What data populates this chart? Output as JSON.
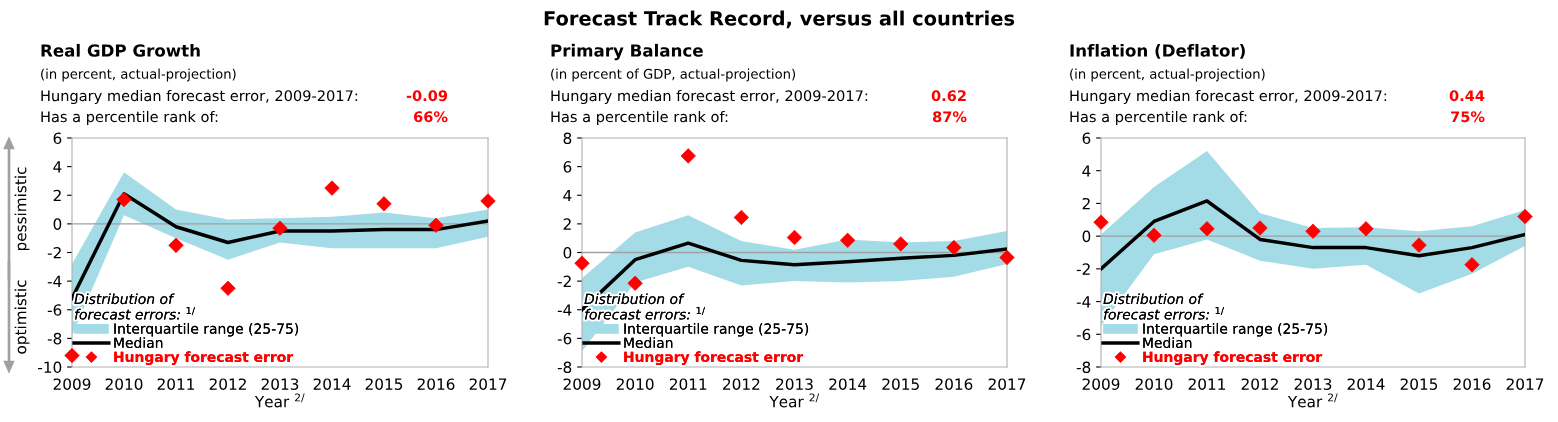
{
  "chart_data": [
    {
      "type": "other",
      "title": "Forecast Track Record, versus all countries"
    },
    {
      "type": "line",
      "title": "Real GDP Growth",
      "subtitle": "(in percent, actual-projection)",
      "xlabel": "Year $^{2/}$",
      "annotations": [
        "Hungary median forecast error, 2009-2017:",
        "-0.09",
        "Has a percentile rank of:",
        "66%",
        "pessimistic",
        "optimistic"
      ],
      "categories": [
        "2009",
        "2010",
        "2011",
        "2012",
        "2013",
        "2014",
        "2015",
        "2016",
        "2017"
      ],
      "series": [
        {
          "name": "Interquartile range (25-75)",
          "type": "area",
          "color": "#a3dce6",
          "values": [
            null,
            null,
            null,
            null,
            null,
            null,
            null,
            null,
            null
          ],
          "lower": [
            -7.8,
            0.6,
            -1.0,
            -2.5,
            -1.3,
            -1.7,
            -1.7,
            -1.7,
            -0.9
          ],
          "upper": [
            -2.8,
            3.6,
            1.0,
            0.3,
            0.4,
            0.5,
            0.8,
            0.4,
            1.0
          ]
        },
        {
          "name": "Median",
          "type": "line",
          "color": "#000000",
          "values": [
            -5.2,
            2.1,
            -0.2,
            -1.3,
            -0.5,
            -0.5,
            -0.4,
            -0.4,
            0.2
          ]
        },
        {
          "name": "Hungary forecast error",
          "type": "scatter",
          "color": "#ff0000",
          "marker": "diamond",
          "values": [
            -9.2,
            1.7,
            -1.5,
            -4.5,
            -0.3,
            2.5,
            1.4,
            -0.1,
            1.6
          ]
        }
      ],
      "ylim": [
        -10,
        6
      ],
      "yticks": [
        -10,
        -8,
        -6,
        -4,
        -2,
        0,
        2,
        4,
        6
      ],
      "ref_lines": [
        {
          "axis": "y",
          "value": 0,
          "color": "#a0a0a0"
        }
      ],
      "legend": "bottom left",
      "legend_title": "Distribution of\nforecast errors: $^{1/}$",
      "grid": false
    },
    {
      "type": "line",
      "title": "Primary Balance",
      "subtitle": "(in percent of GDP, actual-projection)",
      "xlabel": "Year $^{2/}$",
      "annotations": [
        "Hungary median forecast error, 2009-2017:",
        "0.62",
        "Has a percentile rank of:",
        "87%"
      ],
      "categories": [
        "2009",
        "2010",
        "2011",
        "2012",
        "2013",
        "2014",
        "2015",
        "2016",
        "2017"
      ],
      "series": [
        {
          "name": "Interquartile range (25-75)",
          "type": "area",
          "color": "#a3dce6",
          "values": [
            null,
            null,
            null,
            null,
            null,
            null,
            null,
            null,
            null
          ],
          "lower": [
            -6.9,
            -2.1,
            -1.0,
            -2.3,
            -2.0,
            -2.1,
            -2.0,
            -1.7,
            -0.8
          ],
          "upper": [
            -1.8,
            1.4,
            2.6,
            0.8,
            0.2,
            0.9,
            0.7,
            0.8,
            1.5
          ]
        },
        {
          "name": "Median",
          "type": "line",
          "color": "#000000",
          "values": [
            -4.0,
            -0.5,
            0.65,
            -0.55,
            -0.85,
            -0.65,
            -0.4,
            -0.2,
            0.25
          ]
        },
        {
          "name": "Hungary forecast error",
          "type": "scatter",
          "color": "#ff0000",
          "marker": "diamond",
          "values": [
            -0.75,
            -2.15,
            6.75,
            2.45,
            1.05,
            0.85,
            0.6,
            0.35,
            -0.35
          ]
        }
      ],
      "ylim": [
        -8,
        8
      ],
      "yticks": [
        -8,
        -6,
        -4,
        -2,
        0,
        2,
        4,
        6,
        8
      ],
      "ref_lines": [
        {
          "axis": "y",
          "value": 0,
          "color": "#a0a0a0"
        }
      ],
      "legend": "bottom left",
      "legend_title": "Distribution of\nforecast errors: $^{1/}$",
      "grid": false
    },
    {
      "type": "line",
      "title": "Inflation (Deflator)",
      "subtitle": "(in percent, actual-projection)",
      "xlabel": "Year $^{2/}$",
      "annotations": [
        "Hungary median forecast error, 2009-2017:",
        "0.44",
        "Has a percentile rank of:",
        "75%"
      ],
      "categories": [
        "2009",
        "2010",
        "2011",
        "2012",
        "2013",
        "2014",
        "2015",
        "2016",
        "2017"
      ],
      "series": [
        {
          "name": "Interquartile range (25-75)",
          "type": "area",
          "color": "#a3dce6",
          "values": [
            null,
            null,
            null,
            null,
            null,
            null,
            null,
            null,
            null
          ],
          "lower": [
            -5.5,
            -1.1,
            -0.2,
            -1.5,
            -2.0,
            -1.75,
            -3.5,
            -2.3,
            -0.6
          ],
          "upper": [
            0.1,
            3.0,
            5.2,
            1.4,
            0.5,
            0.55,
            0.3,
            0.6,
            1.6
          ]
        },
        {
          "name": "Median",
          "type": "line",
          "color": "#000000",
          "values": [
            -2.0,
            0.9,
            2.15,
            -0.2,
            -0.7,
            -0.7,
            -1.2,
            -0.7,
            0.1
          ]
        },
        {
          "name": "Hungary forecast error",
          "type": "scatter",
          "color": "#ff0000",
          "marker": "diamond",
          "values": [
            0.85,
            0.05,
            0.45,
            0.5,
            0.3,
            0.45,
            -0.55,
            -1.75,
            1.2
          ]
        }
      ],
      "ylim": [
        -8,
        6
      ],
      "yticks": [
        -8,
        -6,
        -4,
        -2,
        0,
        2,
        4,
        6
      ],
      "ref_lines": [
        {
          "axis": "y",
          "value": 0,
          "color": "#a0a0a0"
        }
      ],
      "legend": "bottom left",
      "legend_title": "Distribution of\nforecast errors: $^{1/}$",
      "grid": false
    }
  ]
}
